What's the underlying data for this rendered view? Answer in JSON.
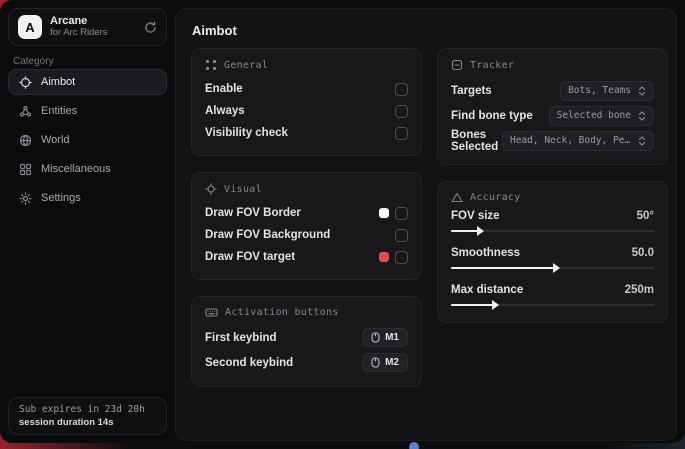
{
  "app": {
    "logo_letter": "A",
    "name": "Arcane",
    "subtitle": "for Arc Riders"
  },
  "sidebar": {
    "category_label": "Category",
    "items": [
      {
        "label": "Aimbot"
      },
      {
        "label": "Entities"
      },
      {
        "label": "World"
      },
      {
        "label": "Miscellaneous"
      },
      {
        "label": "Settings"
      }
    ],
    "footer": {
      "line1": "Sub expires in 23d 20h",
      "line2": "session duration 14s"
    }
  },
  "main": {
    "title": "Aimbot",
    "general": {
      "title": "General",
      "rows": [
        {
          "label": "Enable"
        },
        {
          "label": "Always"
        },
        {
          "label": "Visibility check"
        }
      ]
    },
    "visual": {
      "title": "Visual",
      "rows": [
        {
          "label": "Draw FOV Border",
          "swatch": "#ffffff"
        },
        {
          "label": "Draw FOV Background"
        },
        {
          "label": "Draw FOV target",
          "swatch": "#e5484d"
        }
      ]
    },
    "activation": {
      "title": "Activation buttons",
      "rows": [
        {
          "label": "First keybind",
          "key": "M1"
        },
        {
          "label": "Second keybind",
          "key": "M2"
        }
      ]
    },
    "tracker": {
      "title": "Tracker",
      "rows": [
        {
          "label": "Targets",
          "value": "Bots, Teams"
        },
        {
          "label": "Find bone type",
          "value": "Selected bone"
        },
        {
          "label": "Bones Selected",
          "value": "Head, Neck, Body, Pe..."
        }
      ]
    },
    "accuracy": {
      "title": "Accuracy",
      "rows": [
        {
          "label": "FOV size",
          "value": "50°",
          "percent": 14
        },
        {
          "label": "Smoothness",
          "value": "50.0",
          "percent": 51
        },
        {
          "label": "Max distance",
          "value": "250m",
          "percent": 21
        }
      ]
    }
  },
  "colors": {
    "accent_red": "#e5484d",
    "swatch_white": "#ffffff",
    "desktop_red": "#9a232a"
  }
}
